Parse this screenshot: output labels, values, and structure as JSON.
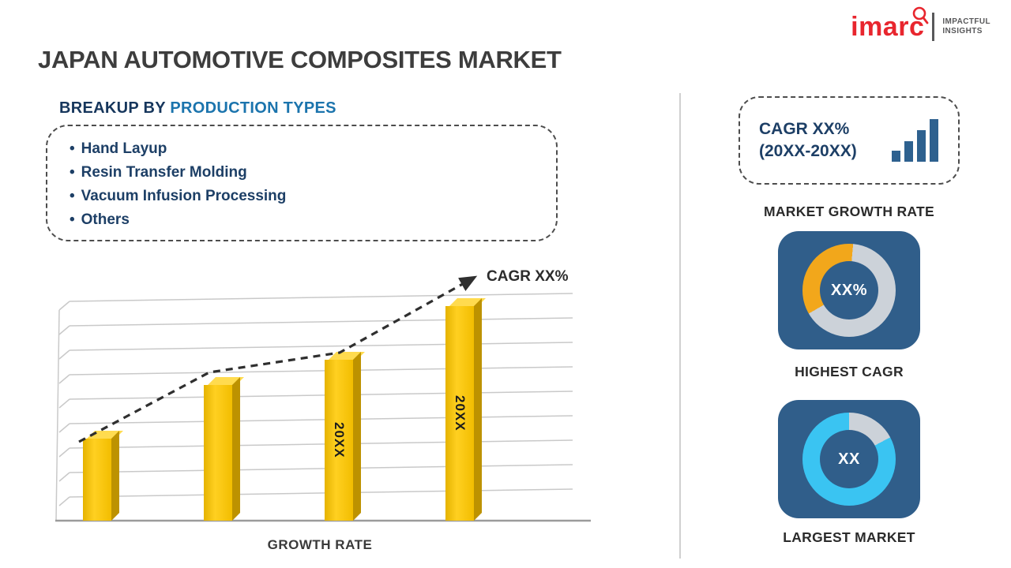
{
  "logo": {
    "brand": "imarc",
    "tagline_line1": "IMPACTFUL",
    "tagline_line2": "INSIGHTS",
    "brand_color": "#e8262e"
  },
  "title": "JAPAN AUTOMOTIVE COMPOSITES MARKET",
  "breakup": {
    "heading_prefix": "BREAKUP BY",
    "heading_highlight": "PRODUCTION TYPES",
    "bullet": "•",
    "items": [
      "Hand Layup",
      "Resin Transfer Molding",
      "Vacuum Infusion Processing",
      "Others"
    ]
  },
  "chart_data": [
    {
      "type": "bar",
      "categories": [
        "",
        "",
        "20XX",
        "20XX"
      ],
      "values": [
        26,
        43,
        51,
        68
      ],
      "ylim": [
        0,
        70
      ],
      "bar_labels": [
        "",
        "",
        "20XX",
        "20XX"
      ],
      "bar_color": "#F5C201",
      "xlabel": "GROWTH RATE",
      "ylabel": "",
      "grid": true,
      "legend": false,
      "trend_label": "CAGR XX%",
      "trend_style": "dashed-arrow-increasing"
    },
    {
      "type": "donut",
      "center_label": "XX%",
      "title": "HIGHEST CAGR",
      "segment_fraction": 0.35,
      "accent_color": "#F2A71B",
      "ring_color": "#CDD2D9"
    },
    {
      "type": "donut",
      "center_label": "XX",
      "title": "LARGEST MARKET",
      "segment_fraction": 0.83,
      "accent_color": "#3AC4F2",
      "ring_color": "#CDD2D9"
    }
  ],
  "right_panel": {
    "cagr_card": {
      "line1": "CAGR XX%",
      "line2": "(20XX-20XX)"
    },
    "market_growth_label": "MARKET GROWTH RATE"
  }
}
